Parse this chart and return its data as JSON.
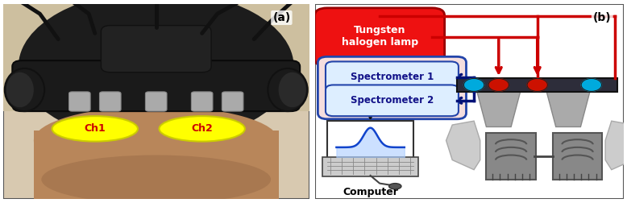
{
  "fig_width": 7.78,
  "fig_height": 2.52,
  "dpi": 100,
  "panel_a_label": "(a)",
  "panel_b_label": "(b)",
  "ch1_label": "Ch1",
  "ch2_label": "Ch2",
  "tungsten_label": "Tungsten\nhalogen lamp",
  "spec1_label": "Spectrometer 1",
  "spec2_label": "Spectrometer 2",
  "computer_label": "Computer",
  "bg_color": "#ffffff",
  "red_box_color": "#ee1111",
  "blue_box_fill": "#f5e8e8",
  "blue_box_edge": "#2244aa",
  "arrow_red": "#cc0000",
  "arrow_blue": "#001177",
  "arrow_dark": "#111111",
  "dot_red": "#cc1100",
  "dot_cyan": "#00aadd",
  "bar_color": "#333344",
  "ch_ellipse_color": "#ffff00",
  "ch_text_color": "#cc0000",
  "label_fontsize": 10,
  "ch_fontsize": 9,
  "spec_fontsize": 8.5,
  "tungsten_fontsize": 9,
  "computer_fontsize": 9
}
